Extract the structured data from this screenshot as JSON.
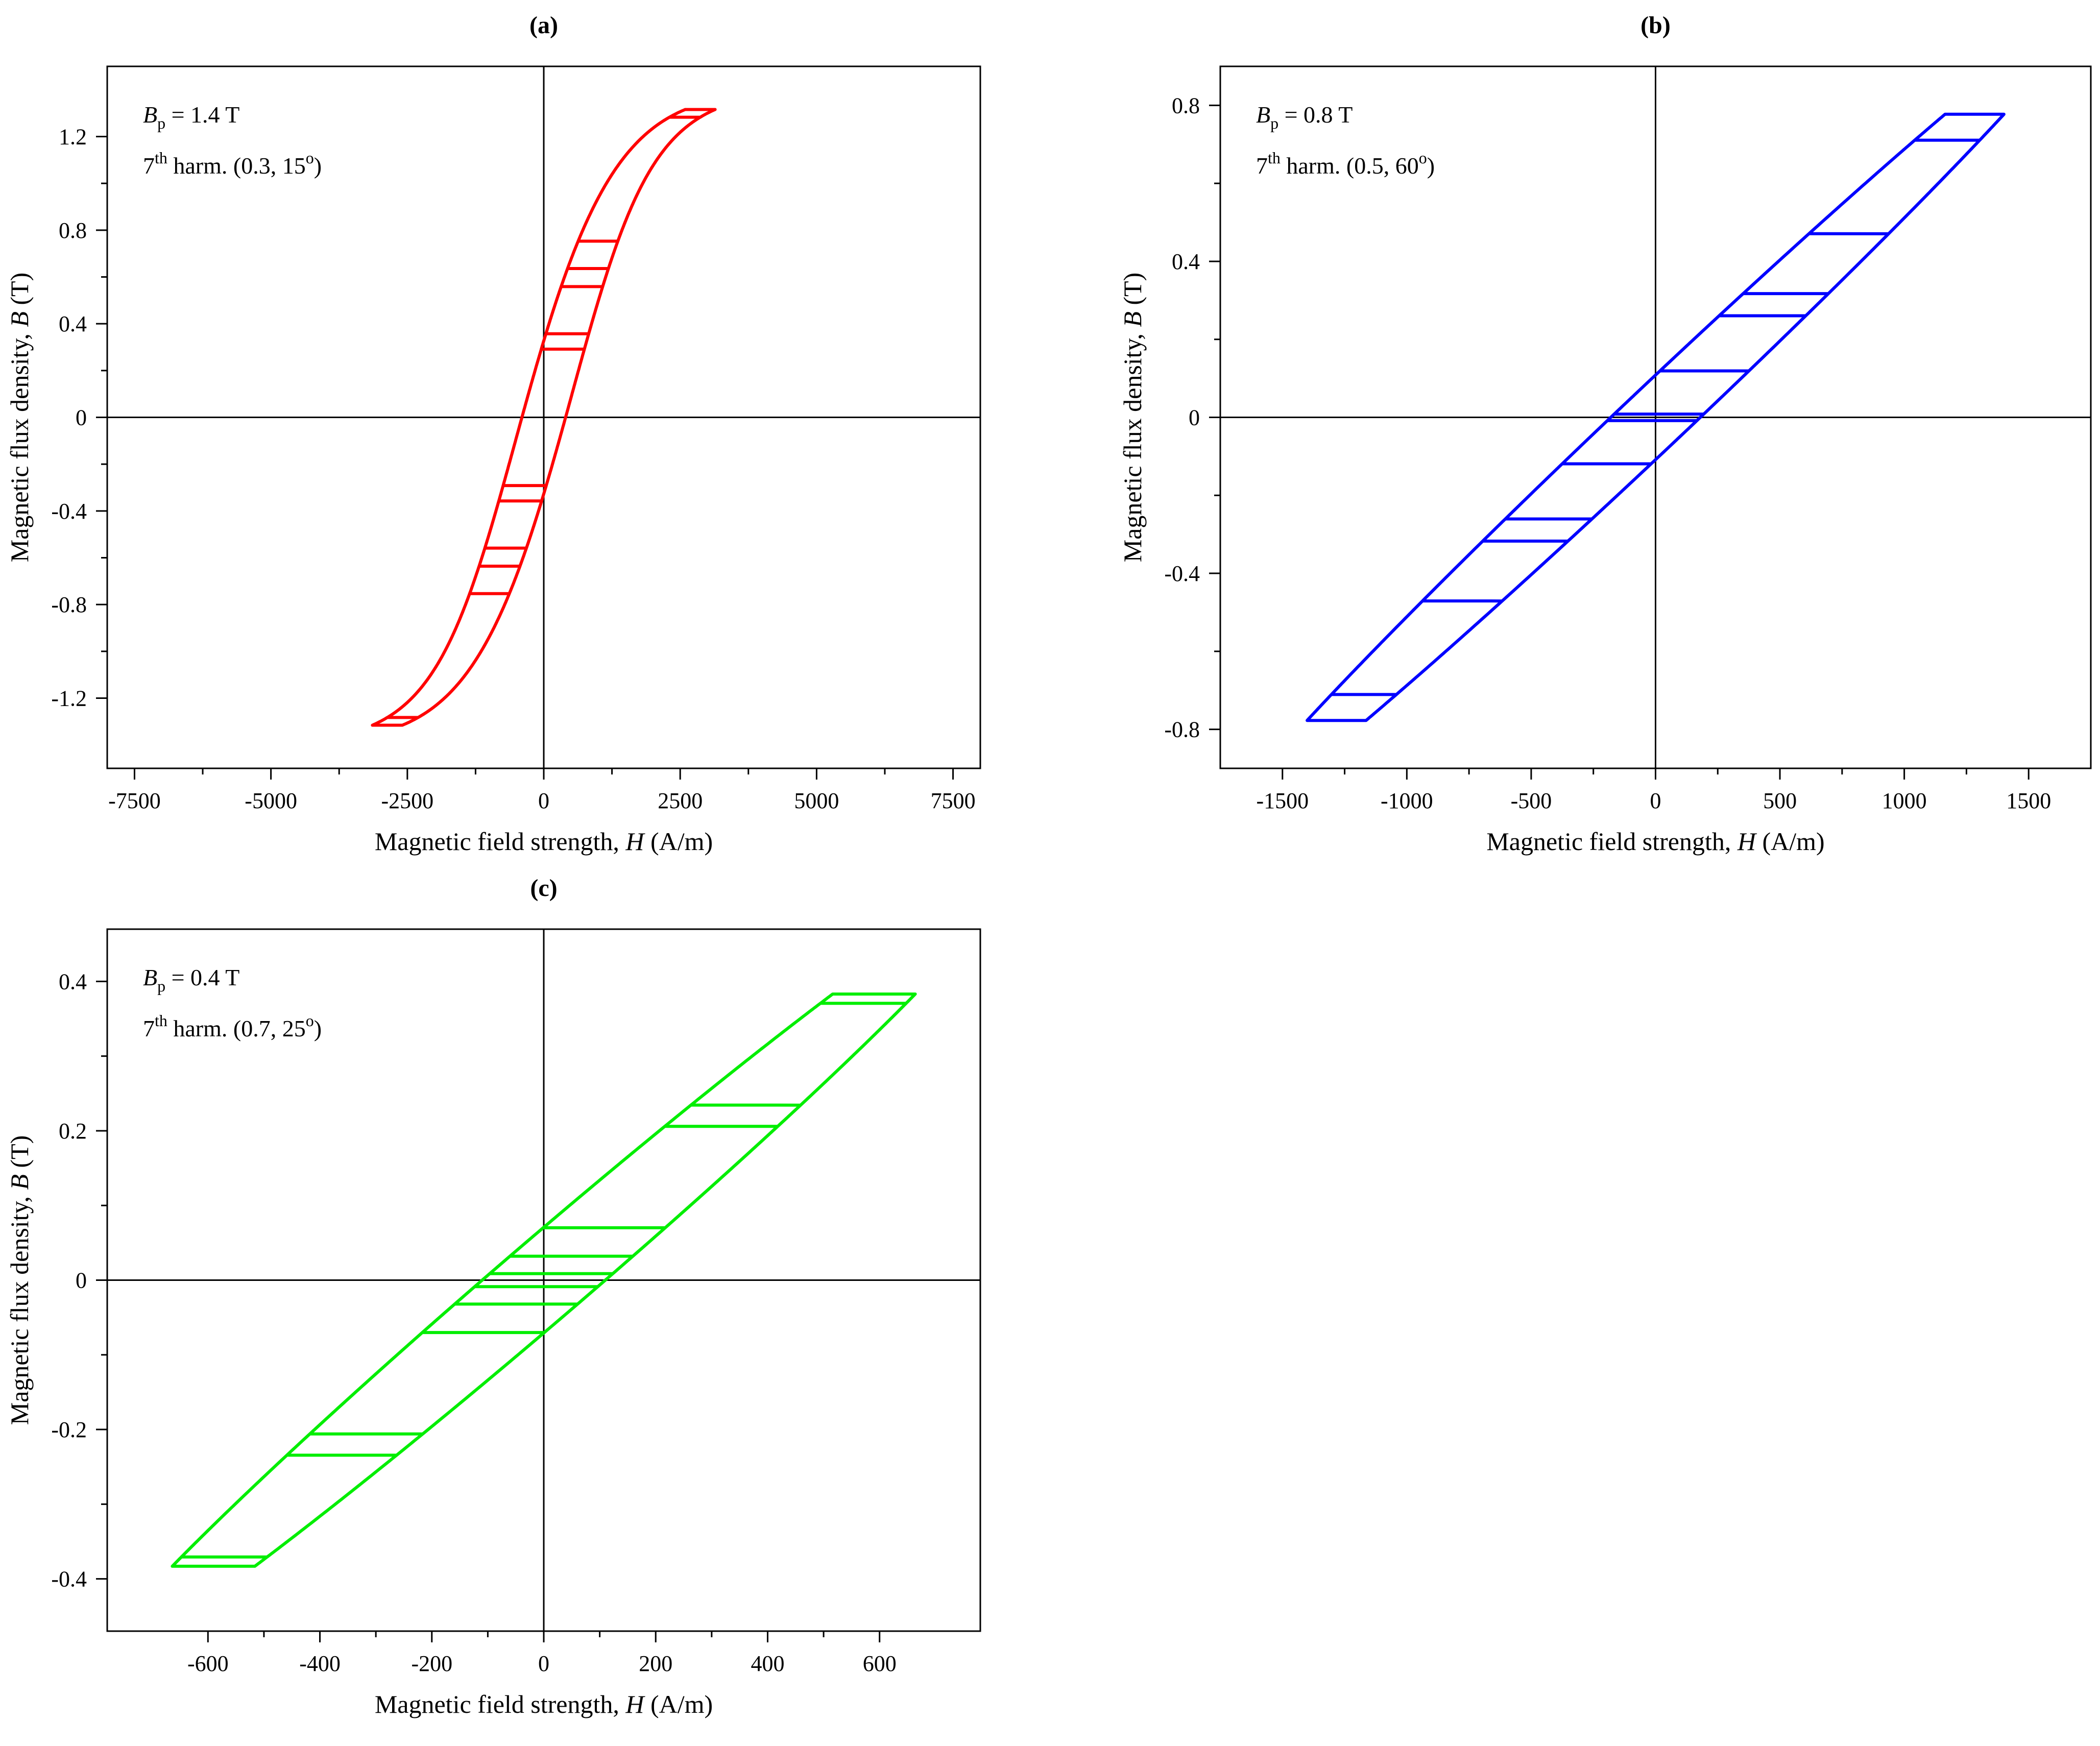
{
  "charts": [
    {
      "id": "a",
      "type": "line",
      "panel_label": "(a)",
      "xlabel_prefix": "Magnetic field strength, ",
      "xlabel_var": "H",
      "xlabel_suffix": " (A/m)",
      "ylabel_prefix": "Magnetic flux density, ",
      "ylabel_var": "B",
      "ylabel_suffix": " (T)",
      "xlim": [
        -8000,
        8000
      ],
      "ylim": [
        -1.5,
        1.5
      ],
      "xticks": [
        -7500,
        -5000,
        -2500,
        0,
        2500,
        5000,
        7500
      ],
      "xtick_labels": [
        "-7500",
        "-5000",
        "-2500",
        "0",
        "2500",
        "5000",
        "7500"
      ],
      "yticks": [
        -1.2,
        -0.8,
        -0.4,
        0,
        0.4,
        0.8,
        1.2
      ],
      "ytick_labels": [
        "-1.2",
        "-0.8",
        "-0.4",
        "0",
        "0.4",
        "0.8",
        "1.2"
      ],
      "annotation_line1": {
        "sym": "B",
        "sub": "p",
        "rest": " = 1.4 T"
      },
      "annotation_line2": {
        "pre": "7",
        "sup": "th",
        "mid": " harm. (0.3, 15",
        "sup2": "o",
        "post": ")"
      },
      "color": "#ff0000",
      "series": [
        {
          "name": "B-H loop",
          "model": {
            "Hmax": 7000,
            "Bp": 1.4,
            "k": 0.3,
            "phi_deg": 15,
            "scale": 1100,
            "cw": 0.52,
            "dH": 400,
            "dB": 0.22
          }
        }
      ]
    },
    {
      "id": "b",
      "type": "line",
      "panel_label": "(b)",
      "xlabel_prefix": "Magnetic field strength, ",
      "xlabel_var": "H",
      "xlabel_suffix": " (A/m)",
      "ylabel_prefix": "Magnetic flux density, ",
      "ylabel_var": "B",
      "ylabel_suffix": " (T)",
      "xlim": [
        -1750,
        1750
      ],
      "ylim": [
        -0.9,
        0.9
      ],
      "xticks": [
        -1500,
        -1000,
        -500,
        0,
        500,
        1000,
        1500
      ],
      "xtick_labels": [
        "-1500",
        "-1000",
        "-500",
        "0",
        "500",
        "1000",
        "1500"
      ],
      "yticks": [
        -0.8,
        -0.4,
        0,
        0.4,
        0.8
      ],
      "ytick_labels": [
        "-0.8",
        "-0.4",
        "0",
        "0.4",
        "0.8"
      ],
      "annotation_line1": {
        "sym": "B",
        "sub": "p",
        "rest": " = 0.8 T"
      },
      "annotation_line2": {
        "pre": "7",
        "sup": "th",
        "mid": " harm. (0.5, 60",
        "sup2": "o",
        "post": ")"
      },
      "color": "#0000ff",
      "series": [
        {
          "name": "B-H loop",
          "model": {
            "Hmax": 1500,
            "Bp": 0.8,
            "k": 0.5,
            "phi_deg": 60,
            "scale": 2000,
            "cw": 0.0,
            "dH": 180,
            "dB": 0.13
          }
        }
      ]
    },
    {
      "id": "c",
      "type": "line",
      "panel_label": "(c)",
      "xlabel_prefix": "Magnetic field strength, ",
      "xlabel_var": "H",
      "xlabel_suffix": " (A/m)",
      "ylabel_prefix": "Magnetic flux density, ",
      "ylabel_var": "B",
      "ylabel_suffix": " (T)",
      "xlim": [
        -780,
        780
      ],
      "ylim": [
        -0.47,
        0.47
      ],
      "xticks": [
        -600,
        -400,
        -200,
        0,
        200,
        400,
        600
      ],
      "xtick_labels": [
        "-600",
        "-400",
        "-200",
        "0",
        "200",
        "400",
        "600"
      ],
      "yticks": [
        -0.4,
        -0.2,
        0,
        0.2,
        0.4
      ],
      "ytick_labels": [
        "-0.4",
        "-0.2",
        "0",
        "0.2",
        "0.4"
      ],
      "annotation_line1": {
        "sym": "B",
        "sub": "p",
        "rest": " = 0.4 T"
      },
      "annotation_line2": {
        "pre": "7",
        "sup": "th",
        "mid": " harm. (0.7, 25",
        "sup2": "o",
        "post": ")"
      },
      "color": "#00ee00",
      "series": [
        {
          "name": "B-H loop",
          "model": {
            "Hmax": 700,
            "Bp": 0.4,
            "k": 0.7,
            "phi_deg": 25,
            "scale": 900,
            "cw": 0.0,
            "dH": 110,
            "dB": 0.09
          }
        }
      ]
    }
  ]
}
